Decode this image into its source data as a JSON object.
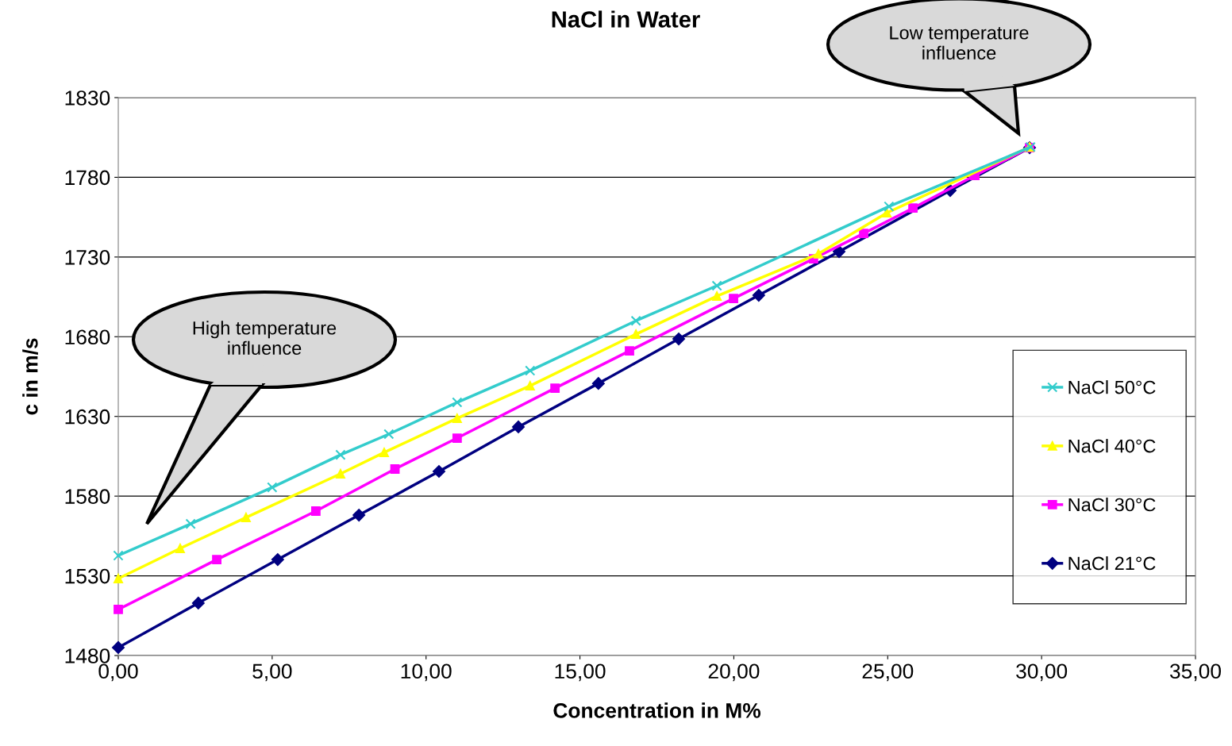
{
  "chart_data": {
    "type": "line",
    "title": "NaCl in Water",
    "xlabel": "Concentration in M%",
    "ylabel": "c in m/s",
    "xlim": [
      0,
      35
    ],
    "xticks": [
      {
        "value": 0,
        "label": "0,00"
      },
      {
        "value": 5,
        "label": "5,00"
      },
      {
        "value": 10,
        "label": "10,00"
      },
      {
        "value": 15,
        "label": "15,00"
      },
      {
        "value": 20,
        "label": "20,00"
      },
      {
        "value": 25,
        "label": "25,00"
      },
      {
        "value": 30,
        "label": "30,00"
      },
      {
        "value": 35,
        "label": "35,00"
      }
    ],
    "ylim": [
      1480,
      1830
    ],
    "yticks": [
      1480,
      1530,
      1580,
      1630,
      1680,
      1730,
      1780,
      1830
    ],
    "grid": "y",
    "legend": "right",
    "annotations": [
      "High temperature\ninfluence",
      "Low temperature\ninfluence"
    ],
    "series": [
      {
        "name": "NaCl 50°C",
        "color": "#33cccc",
        "marker": "cross",
        "x": [
          0,
          2.35,
          5.0,
          7.22,
          8.79,
          11.01,
          13.38,
          16.82,
          19.45,
          25.04,
          29.64
        ],
        "values": [
          1542.7,
          1562.6,
          1585.5,
          1605.9,
          1618.9,
          1638.8,
          1658.7,
          1690,
          1712,
          1761.7,
          1799
        ]
      },
      {
        "name": "NaCl 40°C",
        "color": "#ffff00",
        "marker": "triangle",
        "x": [
          0,
          2.01,
          4.15,
          7.22,
          8.64,
          11.01,
          13.38,
          16.82,
          19.45,
          22.75,
          24.97,
          29.61
        ],
        "values": [
          1528.3,
          1547.2,
          1566.6,
          1594,
          1607.4,
          1628.8,
          1649.2,
          1681.6,
          1705.5,
          1732,
          1757.7,
          1799
        ]
      },
      {
        "name": "NaCl 30°C",
        "color": "#ff00ff",
        "marker": "square",
        "x": [
          0,
          3.2,
          6.42,
          8.99,
          11.01,
          14.19,
          16.61,
          19.99,
          22.59,
          24.22,
          25.82,
          27.83,
          29.61
        ],
        "values": [
          1508.9,
          1540.2,
          1570.6,
          1597,
          1616.4,
          1647.7,
          1671.1,
          1704,
          1728.9,
          1744.8,
          1760.7,
          1781.1,
          1798.6
        ]
      },
      {
        "name": "NaCl 21°C",
        "color": "#000080",
        "marker": "diamond",
        "x": [
          0,
          2.6,
          5.18,
          7.82,
          10.42,
          13.0,
          15.6,
          18.21,
          20.81,
          23.42,
          27.03,
          29.61
        ],
        "values": [
          1485,
          1512.9,
          1540.2,
          1568.1,
          1595.5,
          1623.4,
          1650.7,
          1678.6,
          1706,
          1733.4,
          1771.7,
          1798.6
        ]
      }
    ]
  }
}
